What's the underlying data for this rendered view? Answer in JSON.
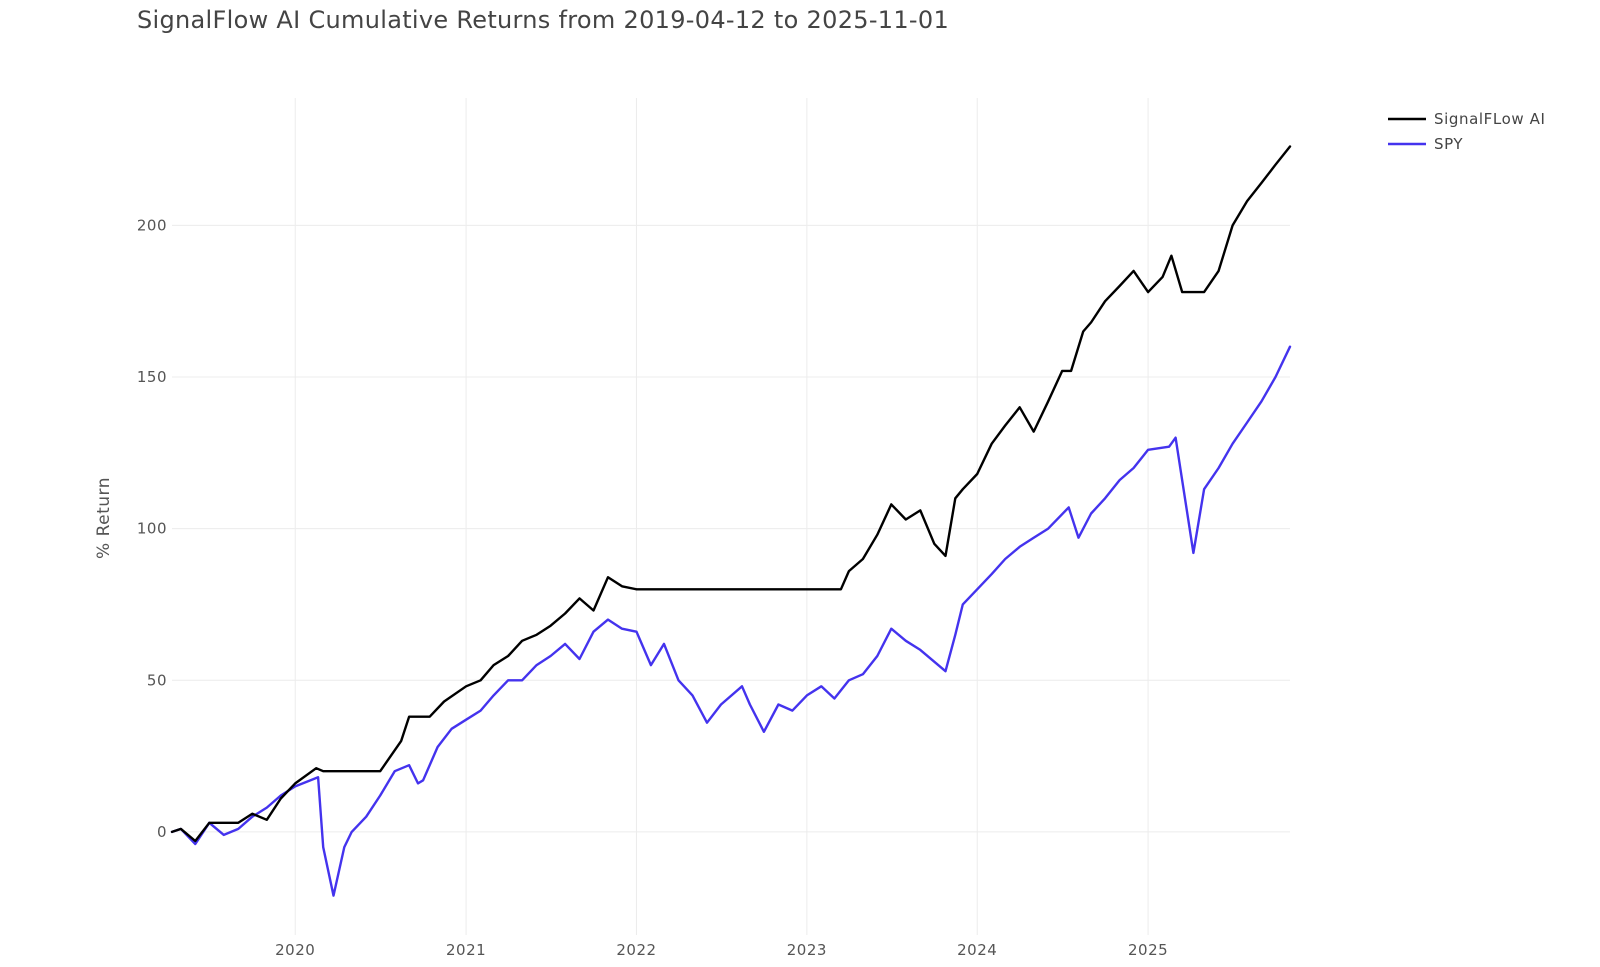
{
  "title": "SignalFlow AI Cumulative Returns from 2019-04-12 to 2025-11-01",
  "chart_data": {
    "type": "line",
    "title": "SignalFlow AI Cumulative Returns from 2019-04-12 to 2025-11-01",
    "xlabel": "",
    "ylabel": "% Return",
    "x_ticks": [
      "2020",
      "2021",
      "2022",
      "2023",
      "2024",
      "2025"
    ],
    "y_ticks": [
      0,
      50,
      100,
      150,
      200
    ],
    "xlim": [
      "2019-04-12",
      "2025-11-01"
    ],
    "ylim": [
      -34,
      242
    ],
    "grid": true,
    "legend_position": "top-right",
    "series": [
      {
        "name": "SignalFLow AI",
        "color": "#000000",
        "x": [
          "2019-04-12",
          "2019-05-01",
          "2019-06-01",
          "2019-07-01",
          "2019-08-01",
          "2019-09-01",
          "2019-10-01",
          "2019-11-01",
          "2019-12-01",
          "2020-01-01",
          "2020-02-15",
          "2020-03-01",
          "2020-06-01",
          "2020-07-01",
          "2020-08-15",
          "2020-09-01",
          "2020-10-15",
          "2020-11-15",
          "2021-01-01",
          "2021-02-01",
          "2021-03-01",
          "2021-04-01",
          "2021-05-01",
          "2021-06-01",
          "2021-07-01",
          "2021-08-01",
          "2021-09-01",
          "2021-10-01",
          "2021-11-01",
          "2021-12-01",
          "2022-01-01",
          "2022-01-15",
          "2022-06-01",
          "2022-12-01",
          "2023-03-15",
          "2023-04-01",
          "2023-05-01",
          "2023-06-01",
          "2023-07-01",
          "2023-08-01",
          "2023-09-01",
          "2023-10-01",
          "2023-10-25",
          "2023-11-15",
          "2023-12-01",
          "2024-01-01",
          "2024-02-01",
          "2024-03-01",
          "2024-04-01",
          "2024-05-01",
          "2024-06-01",
          "2024-07-01",
          "2024-07-20",
          "2024-08-15",
          "2024-09-01",
          "2024-10-01",
          "2024-11-01",
          "2024-12-01",
          "2025-01-01",
          "2025-02-01",
          "2025-02-20",
          "2025-03-15",
          "2025-04-10",
          "2025-05-01",
          "2025-06-01",
          "2025-07-01",
          "2025-08-01",
          "2025-09-01",
          "2025-10-01",
          "2025-11-01"
        ],
        "values": [
          0,
          1,
          -3,
          3,
          3,
          3,
          6,
          4,
          11,
          16,
          21,
          20,
          20,
          20,
          30,
          38,
          38,
          43,
          48,
          50,
          55,
          58,
          63,
          65,
          68,
          72,
          77,
          73,
          84,
          81,
          80,
          80,
          80,
          80,
          80,
          86,
          90,
          98,
          108,
          103,
          106,
          95,
          91,
          110,
          113,
          118,
          128,
          134,
          140,
          132,
          142,
          152,
          152,
          165,
          168,
          175,
          180,
          185,
          178,
          183,
          190,
          178,
          178,
          178,
          185,
          200,
          208,
          214,
          220,
          226
        ]
      },
      {
        "name": "SPY",
        "color": "#4433ee",
        "x": [
          "2019-04-12",
          "2019-05-01",
          "2019-06-01",
          "2019-07-01",
          "2019-08-01",
          "2019-09-01",
          "2019-10-01",
          "2019-11-01",
          "2019-12-01",
          "2020-01-01",
          "2020-02-19",
          "2020-03-01",
          "2020-03-23",
          "2020-04-15",
          "2020-05-01",
          "2020-06-01",
          "2020-07-01",
          "2020-08-01",
          "2020-09-01",
          "2020-09-20",
          "2020-10-01",
          "2020-11-01",
          "2020-12-01",
          "2021-01-01",
          "2021-02-01",
          "2021-03-01",
          "2021-04-01",
          "2021-05-01",
          "2021-06-01",
          "2021-07-01",
          "2021-08-01",
          "2021-09-01",
          "2021-10-01",
          "2021-11-01",
          "2021-12-01",
          "2022-01-01",
          "2022-02-01",
          "2022-03-01",
          "2022-04-01",
          "2022-05-01",
          "2022-06-01",
          "2022-07-01",
          "2022-08-15",
          "2022-09-01",
          "2022-10-01",
          "2022-11-01",
          "2022-12-01",
          "2023-01-01",
          "2023-02-01",
          "2023-03-01",
          "2023-04-01",
          "2023-05-01",
          "2023-06-01",
          "2023-07-01",
          "2023-08-01",
          "2023-09-01",
          "2023-10-25",
          "2023-11-15",
          "2023-12-01",
          "2024-01-01",
          "2024-02-01",
          "2024-03-01",
          "2024-04-01",
          "2024-05-01",
          "2024-06-01",
          "2024-07-15",
          "2024-08-05",
          "2024-09-01",
          "2024-10-01",
          "2024-11-01",
          "2024-12-01",
          "2025-01-01",
          "2025-02-15",
          "2025-03-01",
          "2025-04-08",
          "2025-05-01",
          "2025-06-01",
          "2025-07-01",
          "2025-08-01",
          "2025-09-01",
          "2025-10-01",
          "2025-11-01"
        ],
        "values": [
          0,
          1,
          -4,
          3,
          -1,
          1,
          5,
          8,
          12,
          15,
          18,
          -5,
          -21,
          -5,
          0,
          5,
          12,
          20,
          22,
          16,
          17,
          28,
          34,
          37,
          40,
          45,
          50,
          50,
          55,
          58,
          62,
          57,
          66,
          70,
          67,
          66,
          55,
          62,
          50,
          45,
          36,
          42,
          48,
          42,
          33,
          42,
          40,
          45,
          48,
          44,
          50,
          52,
          58,
          67,
          63,
          60,
          53,
          65,
          75,
          80,
          85,
          90,
          94,
          97,
          100,
          107,
          97,
          105,
          110,
          116,
          120,
          126,
          127,
          130,
          92,
          113,
          120,
          128,
          135,
          142,
          150,
          160
        ]
      }
    ]
  }
}
